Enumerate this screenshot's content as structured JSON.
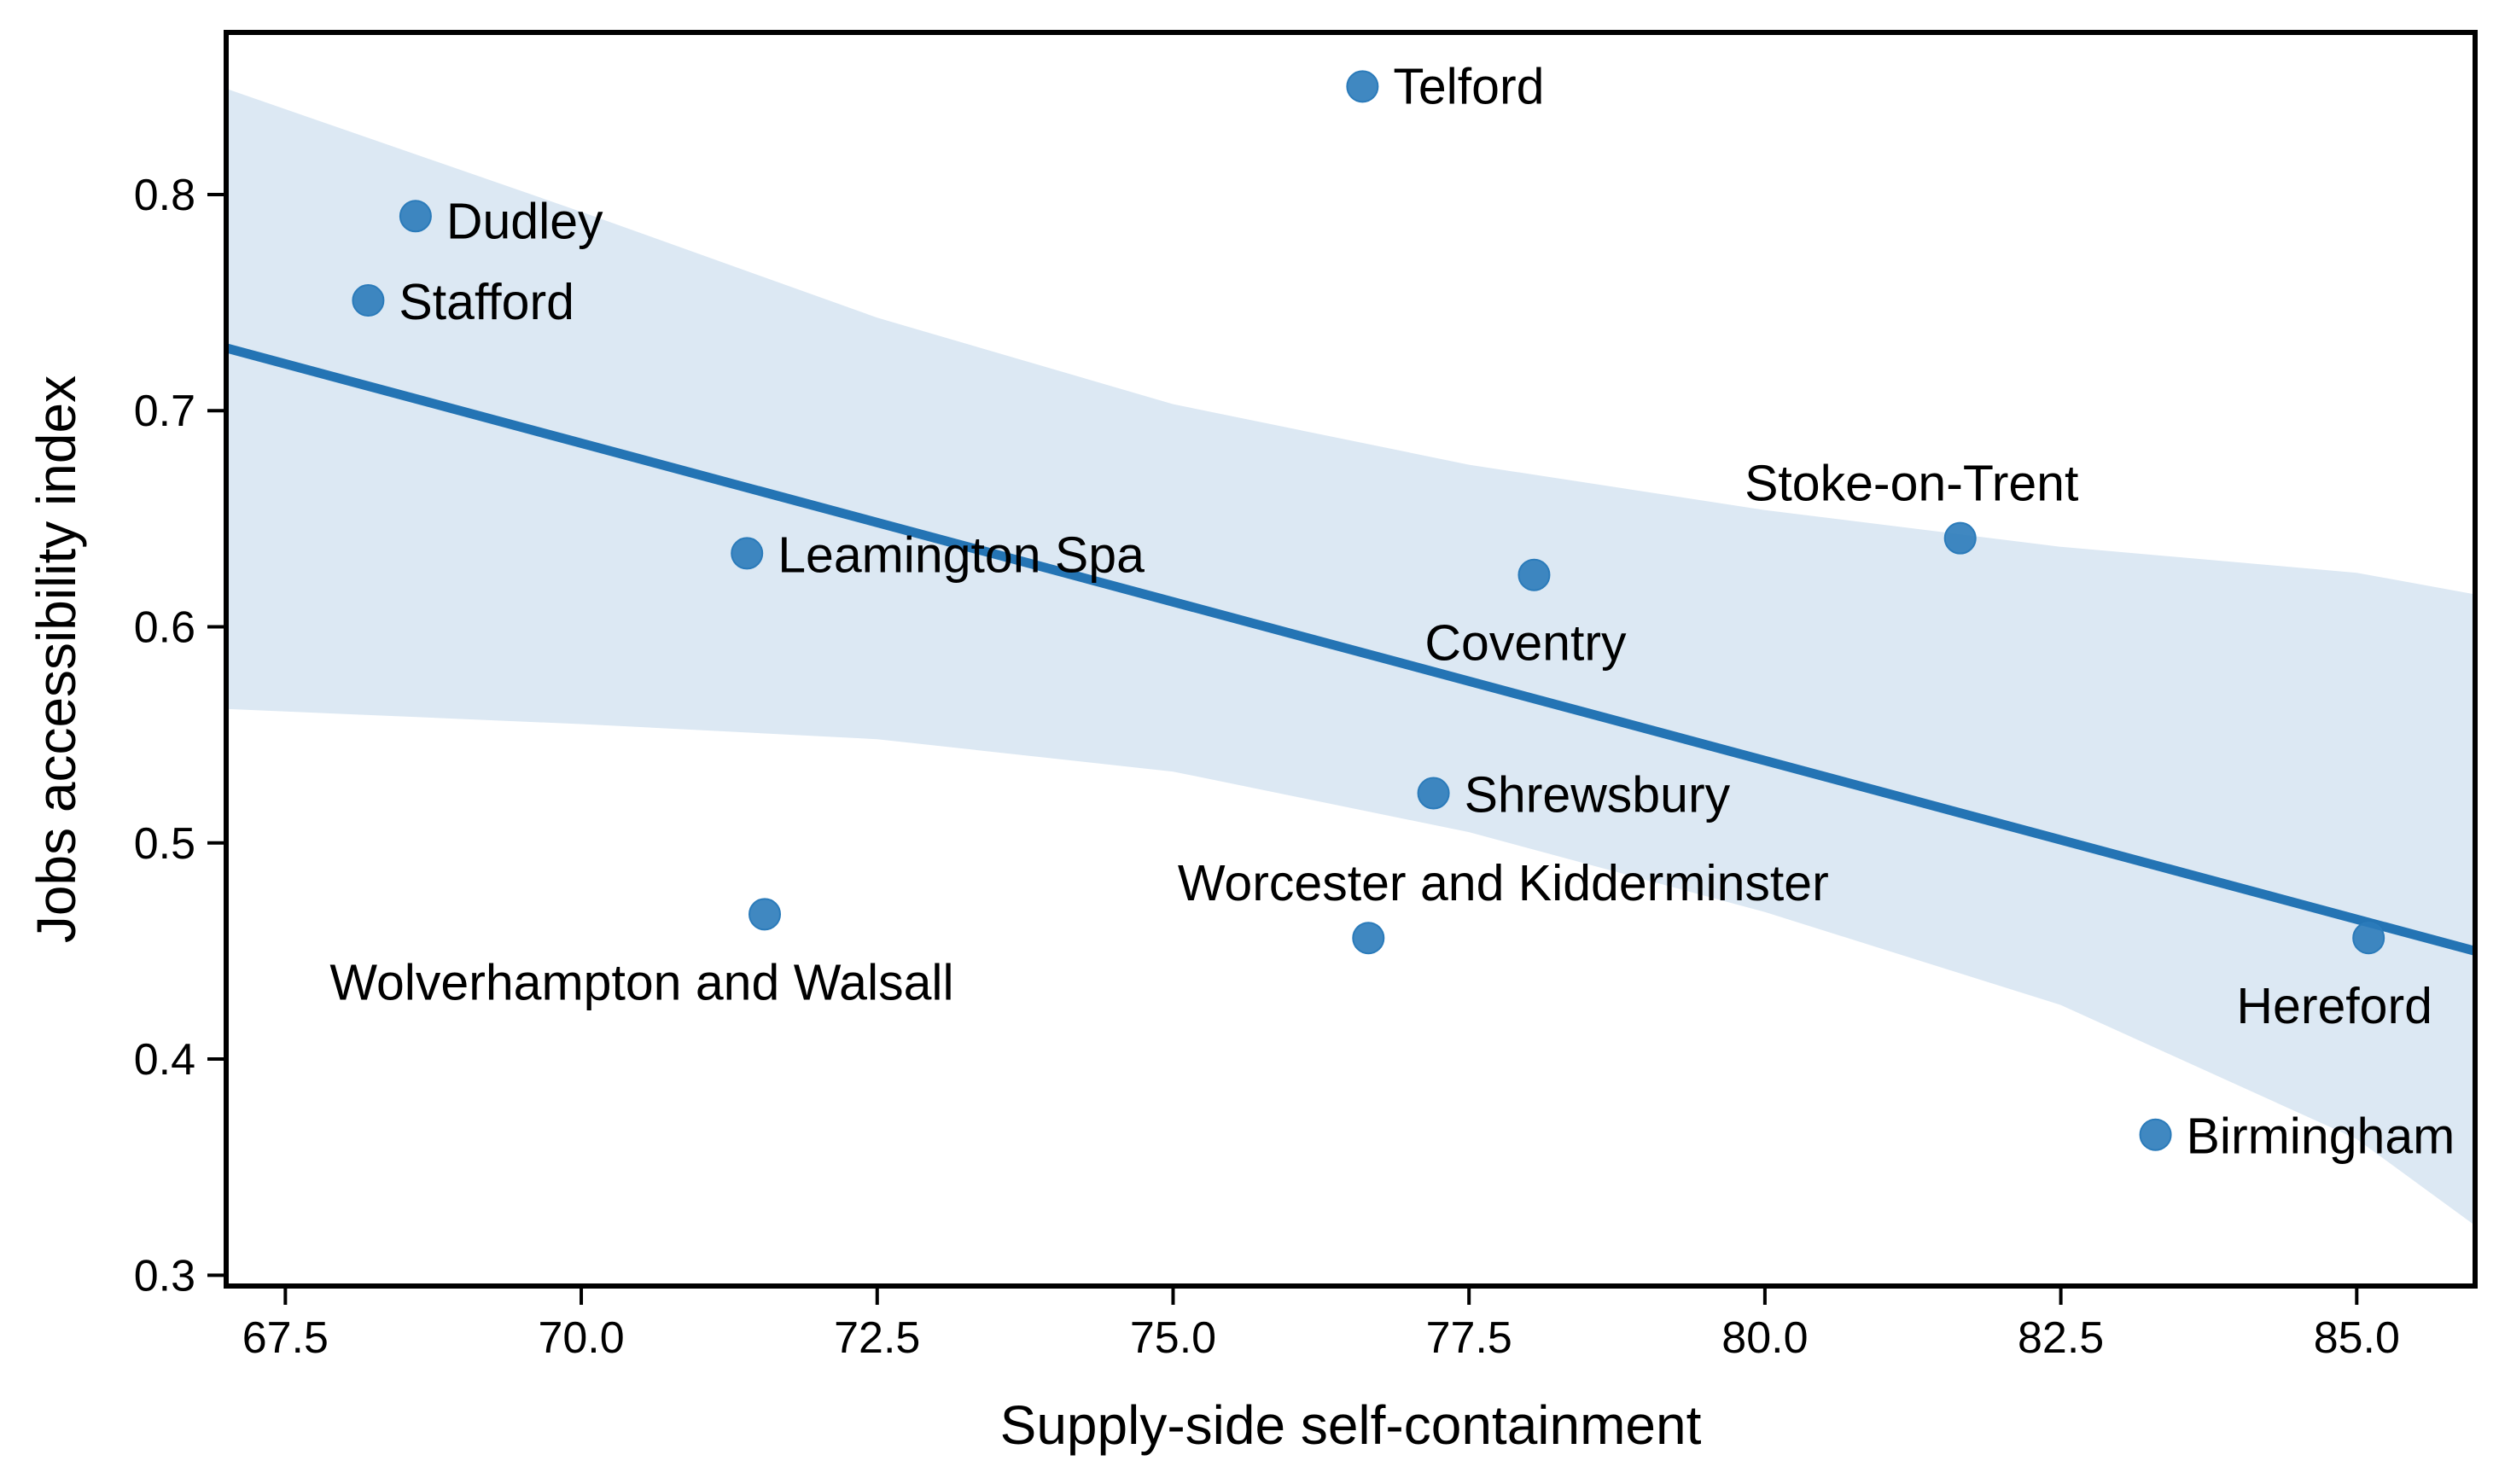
{
  "chart_data": {
    "type": "scatter",
    "title": "",
    "xlabel": "Supply-side self-containment",
    "ylabel": "Jobs accessibility index",
    "xlim": [
      67.0,
      86.0
    ],
    "ylim": [
      0.295,
      0.875
    ],
    "xticks": [
      "67.5",
      "70.0",
      "72.5",
      "75.0",
      "77.5",
      "80.0",
      "82.5",
      "85.0"
    ],
    "xtick_values": [
      67.5,
      70.0,
      72.5,
      75.0,
      77.5,
      80.0,
      82.5,
      85.0
    ],
    "yticks": [
      "0.3",
      "0.4",
      "0.5",
      "0.6",
      "0.7",
      "0.8"
    ],
    "ytick_values": [
      0.3,
      0.4,
      0.5,
      0.6,
      0.7,
      0.8
    ],
    "grid": false,
    "legend": "none",
    "colors": {
      "points": "#2b7bba",
      "fit_line": "#2474b4",
      "band": "#dce8f3",
      "axes": "#000000"
    },
    "points": [
      {
        "name": "Telford",
        "x": 76.6,
        "y": 0.85
      },
      {
        "name": "Dudley",
        "x": 68.6,
        "y": 0.79
      },
      {
        "name": "Stafford",
        "x": 68.2,
        "y": 0.751
      },
      {
        "name": "Leamington Spa",
        "x": 71.4,
        "y": 0.634
      },
      {
        "name": "Coventry",
        "x": 78.05,
        "y": 0.624
      },
      {
        "name": "Stoke-on-Trent",
        "x": 81.65,
        "y": 0.641
      },
      {
        "name": "Shrewsbury",
        "x": 77.2,
        "y": 0.523
      },
      {
        "name": "Wolverhampton and Walsall",
        "x": 71.55,
        "y": 0.467
      },
      {
        "name": "Worcester and Kidderminster",
        "x": 76.65,
        "y": 0.456
      },
      {
        "name": "Hereford",
        "x": 85.1,
        "y": 0.456
      },
      {
        "name": "Birmingham",
        "x": 83.3,
        "y": 0.365
      }
    ],
    "regression": {
      "x": [
        67.0,
        86.0
      ],
      "y": [
        0.729,
        0.45
      ]
    },
    "confidence_band": {
      "x": [
        67.0,
        70.0,
        72.5,
        75.0,
        77.5,
        80.0,
        82.5,
        85.0,
        86.0
      ],
      "upper": [
        0.849,
        0.792,
        0.743,
        0.703,
        0.675,
        0.654,
        0.637,
        0.625,
        0.615
      ],
      "lower": [
        0.562,
        0.555,
        0.548,
        0.533,
        0.505,
        0.468,
        0.425,
        0.363,
        0.323
      ]
    }
  }
}
